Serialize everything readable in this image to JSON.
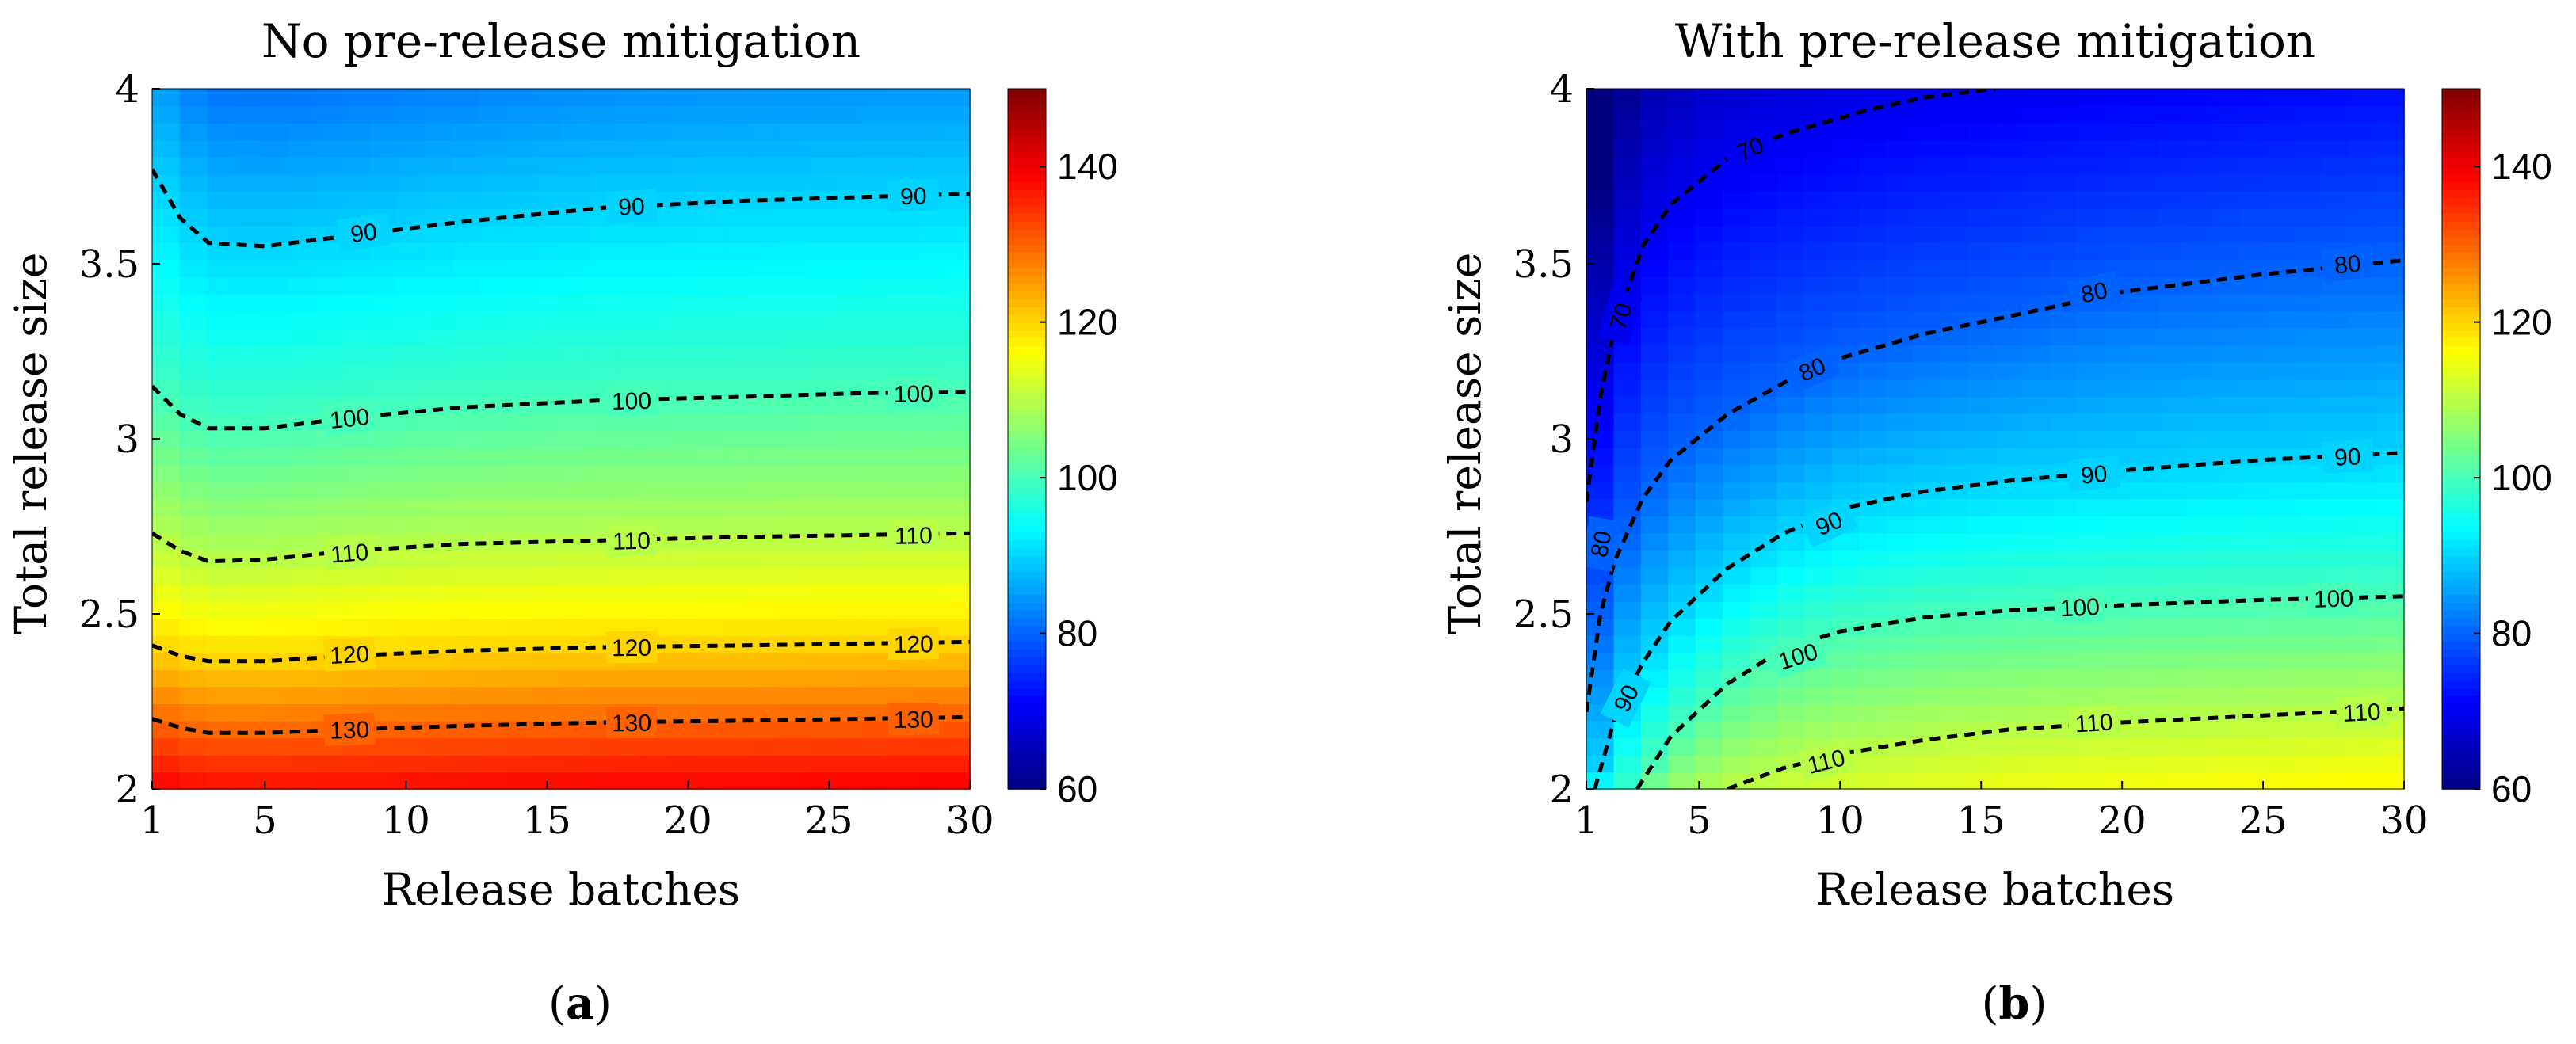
{
  "chart_data": [
    {
      "type": "heatmap",
      "panel_label": "a",
      "title": "No pre-release mitigation",
      "xlabel": "Release batches",
      "ylabel": "Total release size",
      "xlim": [
        1,
        30
      ],
      "ylim": [
        2,
        4
      ],
      "xticks": [
        1,
        5,
        10,
        15,
        20,
        25,
        30
      ],
      "yticks": [
        2,
        2.5,
        3,
        3.5,
        4
      ],
      "colormap": "jet",
      "clim": [
        60,
        150
      ],
      "colorbar_ticks": [
        60,
        80,
        100,
        120,
        140
      ],
      "contours": [
        {
          "level": 90,
          "points": [
            [
              1,
              3.77
            ],
            [
              2,
              3.63
            ],
            [
              3,
              3.56
            ],
            [
              5,
              3.55
            ],
            [
              8,
              3.58
            ],
            [
              12,
              3.62
            ],
            [
              17,
              3.66
            ],
            [
              22,
              3.68
            ],
            [
              26,
              3.69
            ],
            [
              30,
              3.7
            ]
          ],
          "label_positions": [
            [
              8.5,
              3.59
            ],
            [
              18,
              3.665
            ],
            [
              28,
              3.695
            ]
          ]
        },
        {
          "level": 100,
          "points": [
            [
              1,
              3.15
            ],
            [
              2,
              3.07
            ],
            [
              3,
              3.03
            ],
            [
              5,
              3.03
            ],
            [
              8,
              3.06
            ],
            [
              12,
              3.09
            ],
            [
              17,
              3.11
            ],
            [
              22,
              3.12
            ],
            [
              26,
              3.13
            ],
            [
              30,
              3.135
            ]
          ],
          "label_positions": [
            [
              8,
              3.06
            ],
            [
              18,
              3.11
            ],
            [
              28,
              3.13
            ]
          ]
        },
        {
          "level": 110,
          "points": [
            [
              1,
              2.73
            ],
            [
              2,
              2.68
            ],
            [
              3,
              2.65
            ],
            [
              5,
              2.655
            ],
            [
              8,
              2.68
            ],
            [
              12,
              2.7
            ],
            [
              17,
              2.71
            ],
            [
              22,
              2.72
            ],
            [
              26,
              2.725
            ],
            [
              30,
              2.73
            ]
          ],
          "label_positions": [
            [
              8,
              2.675
            ],
            [
              18,
              2.71
            ],
            [
              28,
              2.725
            ]
          ]
        },
        {
          "level": 120,
          "points": [
            [
              1,
              2.41
            ],
            [
              2,
              2.38
            ],
            [
              3,
              2.365
            ],
            [
              5,
              2.365
            ],
            [
              8,
              2.38
            ],
            [
              12,
              2.395
            ],
            [
              17,
              2.405
            ],
            [
              22,
              2.41
            ],
            [
              26,
              2.415
            ],
            [
              30,
              2.42
            ]
          ],
          "label_positions": [
            [
              8,
              2.385
            ],
            [
              18,
              2.405
            ],
            [
              28,
              2.415
            ]
          ]
        },
        {
          "level": 130,
          "points": [
            [
              1,
              2.2
            ],
            [
              2,
              2.175
            ],
            [
              3,
              2.16
            ],
            [
              5,
              2.16
            ],
            [
              8,
              2.17
            ],
            [
              12,
              2.18
            ],
            [
              17,
              2.19
            ],
            [
              22,
              2.195
            ],
            [
              26,
              2.2
            ],
            [
              30,
              2.205
            ]
          ],
          "label_positions": [
            [
              8,
              2.17
            ],
            [
              18,
              2.19
            ],
            [
              28,
              2.2
            ]
          ]
        }
      ]
    },
    {
      "type": "heatmap",
      "panel_label": "b",
      "title": "With pre-release mitigation",
      "xlabel": "Release batches",
      "ylabel": "Total release size",
      "xlim": [
        1,
        30
      ],
      "ylim": [
        2,
        4
      ],
      "xticks": [
        1,
        5,
        10,
        15,
        20,
        25,
        30
      ],
      "yticks": [
        2,
        2.5,
        3,
        3.5,
        4
      ],
      "colormap": "jet",
      "clim": [
        60,
        150
      ],
      "colorbar_ticks": [
        60,
        80,
        100,
        120,
        140
      ],
      "contours": [
        {
          "level": 70,
          "points": [
            [
              1,
              2.82
            ],
            [
              1.5,
              3.12
            ],
            [
              2,
              3.32
            ],
            [
              3,
              3.55
            ],
            [
              4,
              3.67
            ],
            [
              6,
              3.8
            ],
            [
              8,
              3.87
            ],
            [
              11,
              3.94
            ],
            [
              13,
              3.975
            ],
            [
              15.5,
              4.0
            ]
          ],
          "label_positions": [
            [
              2.2,
              3.35
            ],
            [
              6.8,
              3.83
            ]
          ]
        },
        {
          "level": 80,
          "points": [
            [
              1,
              2.22
            ],
            [
              1.5,
              2.5
            ],
            [
              2,
              2.65
            ],
            [
              3,
              2.83
            ],
            [
              4,
              2.94
            ],
            [
              6,
              3.07
            ],
            [
              8,
              3.16
            ],
            [
              10,
              3.23
            ],
            [
              13,
              3.3
            ],
            [
              16,
              3.35
            ],
            [
              20,
              3.42
            ],
            [
              25,
              3.47
            ],
            [
              30,
              3.51
            ]
          ],
          "label_positions": [
            [
              1.5,
              2.7
            ],
            [
              9,
              3.2
            ],
            [
              19,
              3.42
            ],
            [
              28,
              3.5
            ]
          ]
        },
        {
          "level": 90,
          "points": [
            [
              1.3,
              2.0
            ],
            [
              2,
              2.2
            ],
            [
              3,
              2.36
            ],
            [
              4,
              2.48
            ],
            [
              6,
              2.63
            ],
            [
              8,
              2.73
            ],
            [
              10,
              2.8
            ],
            [
              13,
              2.85
            ],
            [
              16,
              2.88
            ],
            [
              20,
              2.91
            ],
            [
              25,
              2.94
            ],
            [
              30,
              2.96
            ]
          ],
          "label_positions": [
            [
              2.4,
              2.26
            ],
            [
              9.6,
              2.76
            ],
            [
              19,
              2.9
            ],
            [
              28,
              2.95
            ]
          ]
        },
        {
          "level": 100,
          "points": [
            [
              2.8,
              2.0
            ],
            [
              4,
              2.15
            ],
            [
              6,
              2.3
            ],
            [
              8,
              2.4
            ],
            [
              10,
              2.45
            ],
            [
              13,
              2.49
            ],
            [
              16,
              2.51
            ],
            [
              20,
              2.525
            ],
            [
              25,
              2.54
            ],
            [
              30,
              2.55
            ]
          ],
          "label_positions": [
            [
              8.5,
              2.38
            ],
            [
              18.5,
              2.52
            ],
            [
              27.5,
              2.545
            ]
          ]
        },
        {
          "level": 110,
          "points": [
            [
              6,
              2.0
            ],
            [
              8,
              2.06
            ],
            [
              10,
              2.1
            ],
            [
              13,
              2.14
            ],
            [
              16,
              2.17
            ],
            [
              20,
              2.19
            ],
            [
              25,
              2.21
            ],
            [
              30,
              2.23
            ]
          ],
          "label_positions": [
            [
              9.5,
              2.08
            ],
            [
              19,
              2.19
            ],
            [
              28.5,
              2.22
            ]
          ]
        }
      ]
    }
  ]
}
